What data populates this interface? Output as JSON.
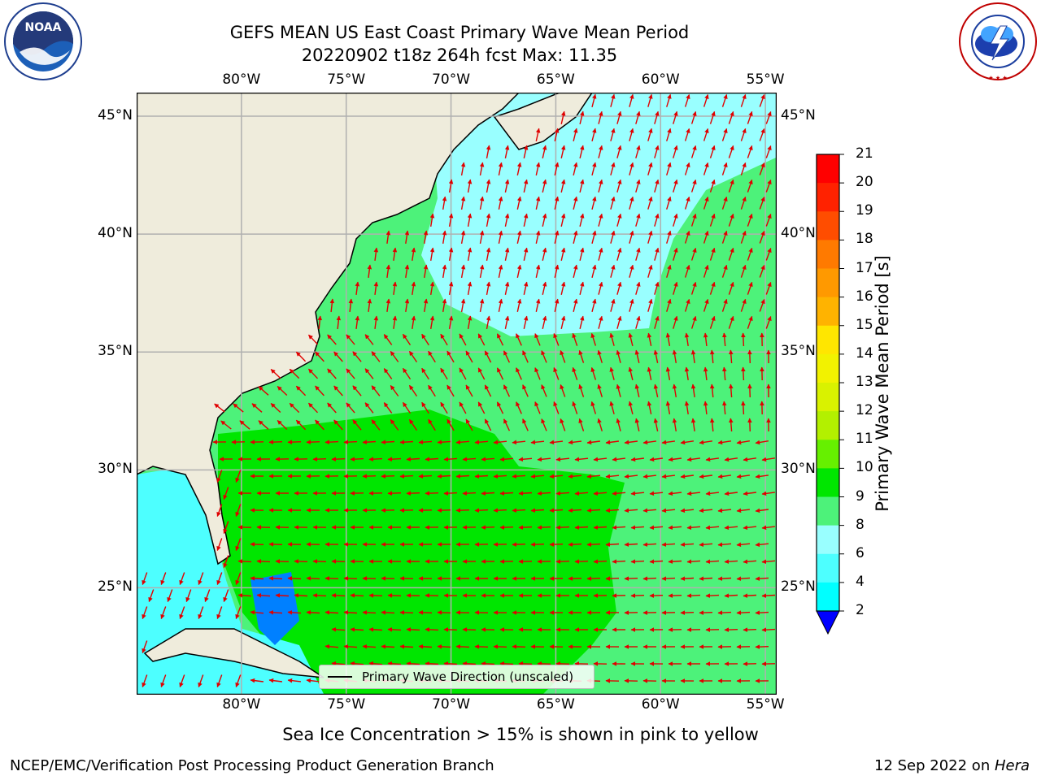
{
  "header": {
    "title_line1": "GEFS MEAN US East Coast Primary Wave Mean Period",
    "title_line2": "20220902 t18z 264h fcst   Max: 11.35"
  },
  "logos": {
    "left": {
      "name": "noaa-logo",
      "text": "NOAA",
      "ring_text": "NATIONAL OCEANIC AND ATMOSPHERIC ADMINISTRATION · U.S. DEPARTMENT OF COMMERCE"
    },
    "right": {
      "name": "nws-logo",
      "ring_text": "NATIONAL WEATHER SERVICE"
    }
  },
  "map": {
    "lon_ticks": [
      "80°W",
      "75°W",
      "70°W",
      "65°W",
      "60°W",
      "55°W"
    ],
    "lat_ticks": [
      "45°N",
      "40°N",
      "35°N",
      "30°N",
      "25°N"
    ],
    "lon_range": [
      -85,
      -54.5
    ],
    "lat_range": [
      20.5,
      46
    ],
    "colors": {
      "land": "#efecdc",
      "grid": "#b0b0b0",
      "arrow": "#e00000"
    },
    "legend_label": "Primary Wave Direction (unscaled)"
  },
  "colorbar": {
    "label": "Primary Wave Mean Period [s]",
    "levels": [
      "21",
      "20",
      "19",
      "18",
      "17",
      "16",
      "15",
      "14",
      "13",
      "12",
      "11",
      "10",
      "9",
      "8",
      "6",
      "4",
      "2"
    ],
    "colors": [
      "#ff0000",
      "#ff2200",
      "#ff4d00",
      "#ff7a00",
      "#ff9900",
      "#ffb300",
      "#ffe600",
      "#f2f200",
      "#d9f200",
      "#b3f000",
      "#66f000",
      "#00e600",
      "#4df27a",
      "#99ffff",
      "#4dffff",
      "#00ffff",
      "#0080ff",
      "#1a66ff",
      "#0000ff"
    ]
  },
  "footer": {
    "sea_ice_note": "Sea Ice Concentration > 15% is shown in pink to yellow",
    "branch": "NCEP/EMC/Verification Post Processing Product Generation Branch",
    "date_prefix": "12 Sep 2022 on ",
    "machine": "Hera"
  }
}
